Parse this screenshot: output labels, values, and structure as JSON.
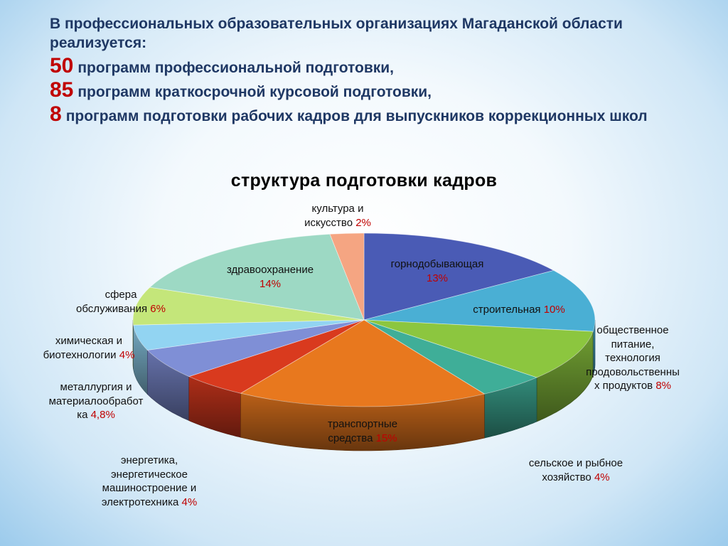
{
  "header": {
    "intro": "В профессиональных образовательных организациях Магаданской области реализуется:",
    "programs": [
      {
        "number": "50",
        "text": "программ профессиональной подготовки,"
      },
      {
        "number": "85",
        "text": "программ краткосрочной курсовой подготовки,"
      },
      {
        "number": "8",
        "text": "программ подготовки рабочих кадров для выпускников коррекционных школ"
      }
    ]
  },
  "chart_data": {
    "type": "pie",
    "title": "структура подготовки кадров",
    "slices": [
      {
        "label": "горнодобывающая",
        "value": 13,
        "value_label": "13%",
        "color": "#4a5bb5"
      },
      {
        "label": "строительная",
        "value": 10,
        "value_label": "10%",
        "color": "#4aafd4"
      },
      {
        "label": "общественное питание, технология продовольственных продуктов",
        "value": 8,
        "value_label": "8%",
        "color": "#8cc63f"
      },
      {
        "label": "сельское и рыбное хозяйство",
        "value": 4,
        "value_label": "4%",
        "color": "#3fae98"
      },
      {
        "label": "транспортные средства",
        "value": 15,
        "value_label": "15%",
        "color": "#e8781e"
      },
      {
        "label": "энергетика, энергетическое машиностроение и электротехника",
        "value": 4,
        "value_label": "4%",
        "color": "#d93a1e"
      },
      {
        "label": "металлургия и материалообработка",
        "value": 4.8,
        "value_label": "4,8%",
        "color": "#7f8fd6"
      },
      {
        "label": "химическая и биотехнологии",
        "value": 4,
        "value_label": "4%",
        "color": "#92d4f2"
      },
      {
        "label": "сфера обслуживания",
        "value": 6,
        "value_label": "6%",
        "color": "#c4e67a"
      },
      {
        "label": "здравоохранение",
        "value": 14,
        "value_label": "14%",
        "color": "#9dd9c4"
      },
      {
        "label": "культура и искусство",
        "value": 2,
        "value_label": "2%",
        "color": "#f5a582"
      }
    ],
    "label_texts": [
      "горнодобывающая\n",
      "строительная ",
      "общественное\nпитание,\nтехнология\nпродовольственны\nх продуктов ",
      "сельское и рыбное\nхозяйство ",
      "транспортные\nсредства ",
      "энергетика,\nэнергетическое\nмашиностроение и\nэлектротехника ",
      "металлургия и\nматериалообработ\nка ",
      "химическая и\nбиотехнологии ",
      "сфера\nобслуживания ",
      "здравоохранение\n",
      "культура и\nискусство "
    ]
  }
}
